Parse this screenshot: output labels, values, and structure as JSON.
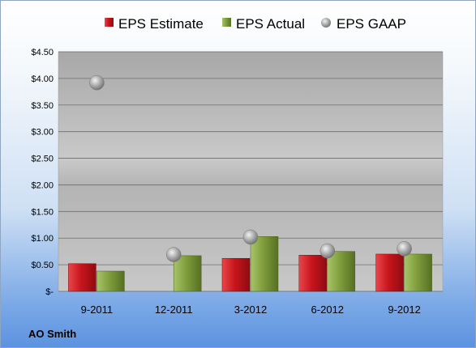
{
  "chart_data": {
    "type": "bar",
    "categories": [
      "9-2011",
      "12-2011",
      "3-2012",
      "6-2012",
      "9-2012"
    ],
    "series": [
      {
        "name": "EPS Estimate",
        "kind": "bar",
        "color": "#c0151b",
        "values": [
          0.52,
          null,
          0.62,
          0.68,
          0.7
        ]
      },
      {
        "name": "EPS Actual",
        "kind": "bar",
        "color": "#7f9e3c",
        "values": [
          0.38,
          0.67,
          1.03,
          0.75,
          0.7
        ]
      },
      {
        "name": "EPS GAAP",
        "kind": "scatter",
        "color": "#a6a6a6",
        "values": [
          3.92,
          0.69,
          1.02,
          0.76,
          0.8
        ]
      }
    ],
    "y_ticks": [
      "$-",
      "$0.50",
      "$1.00",
      "$1.50",
      "$2.00",
      "$2.50",
      "$3.00",
      "$3.50",
      "$4.00",
      "$4.50"
    ],
    "ylim": [
      0,
      4.5
    ],
    "grid": true,
    "legend_position": "top",
    "footer_label": "AO Smith"
  }
}
